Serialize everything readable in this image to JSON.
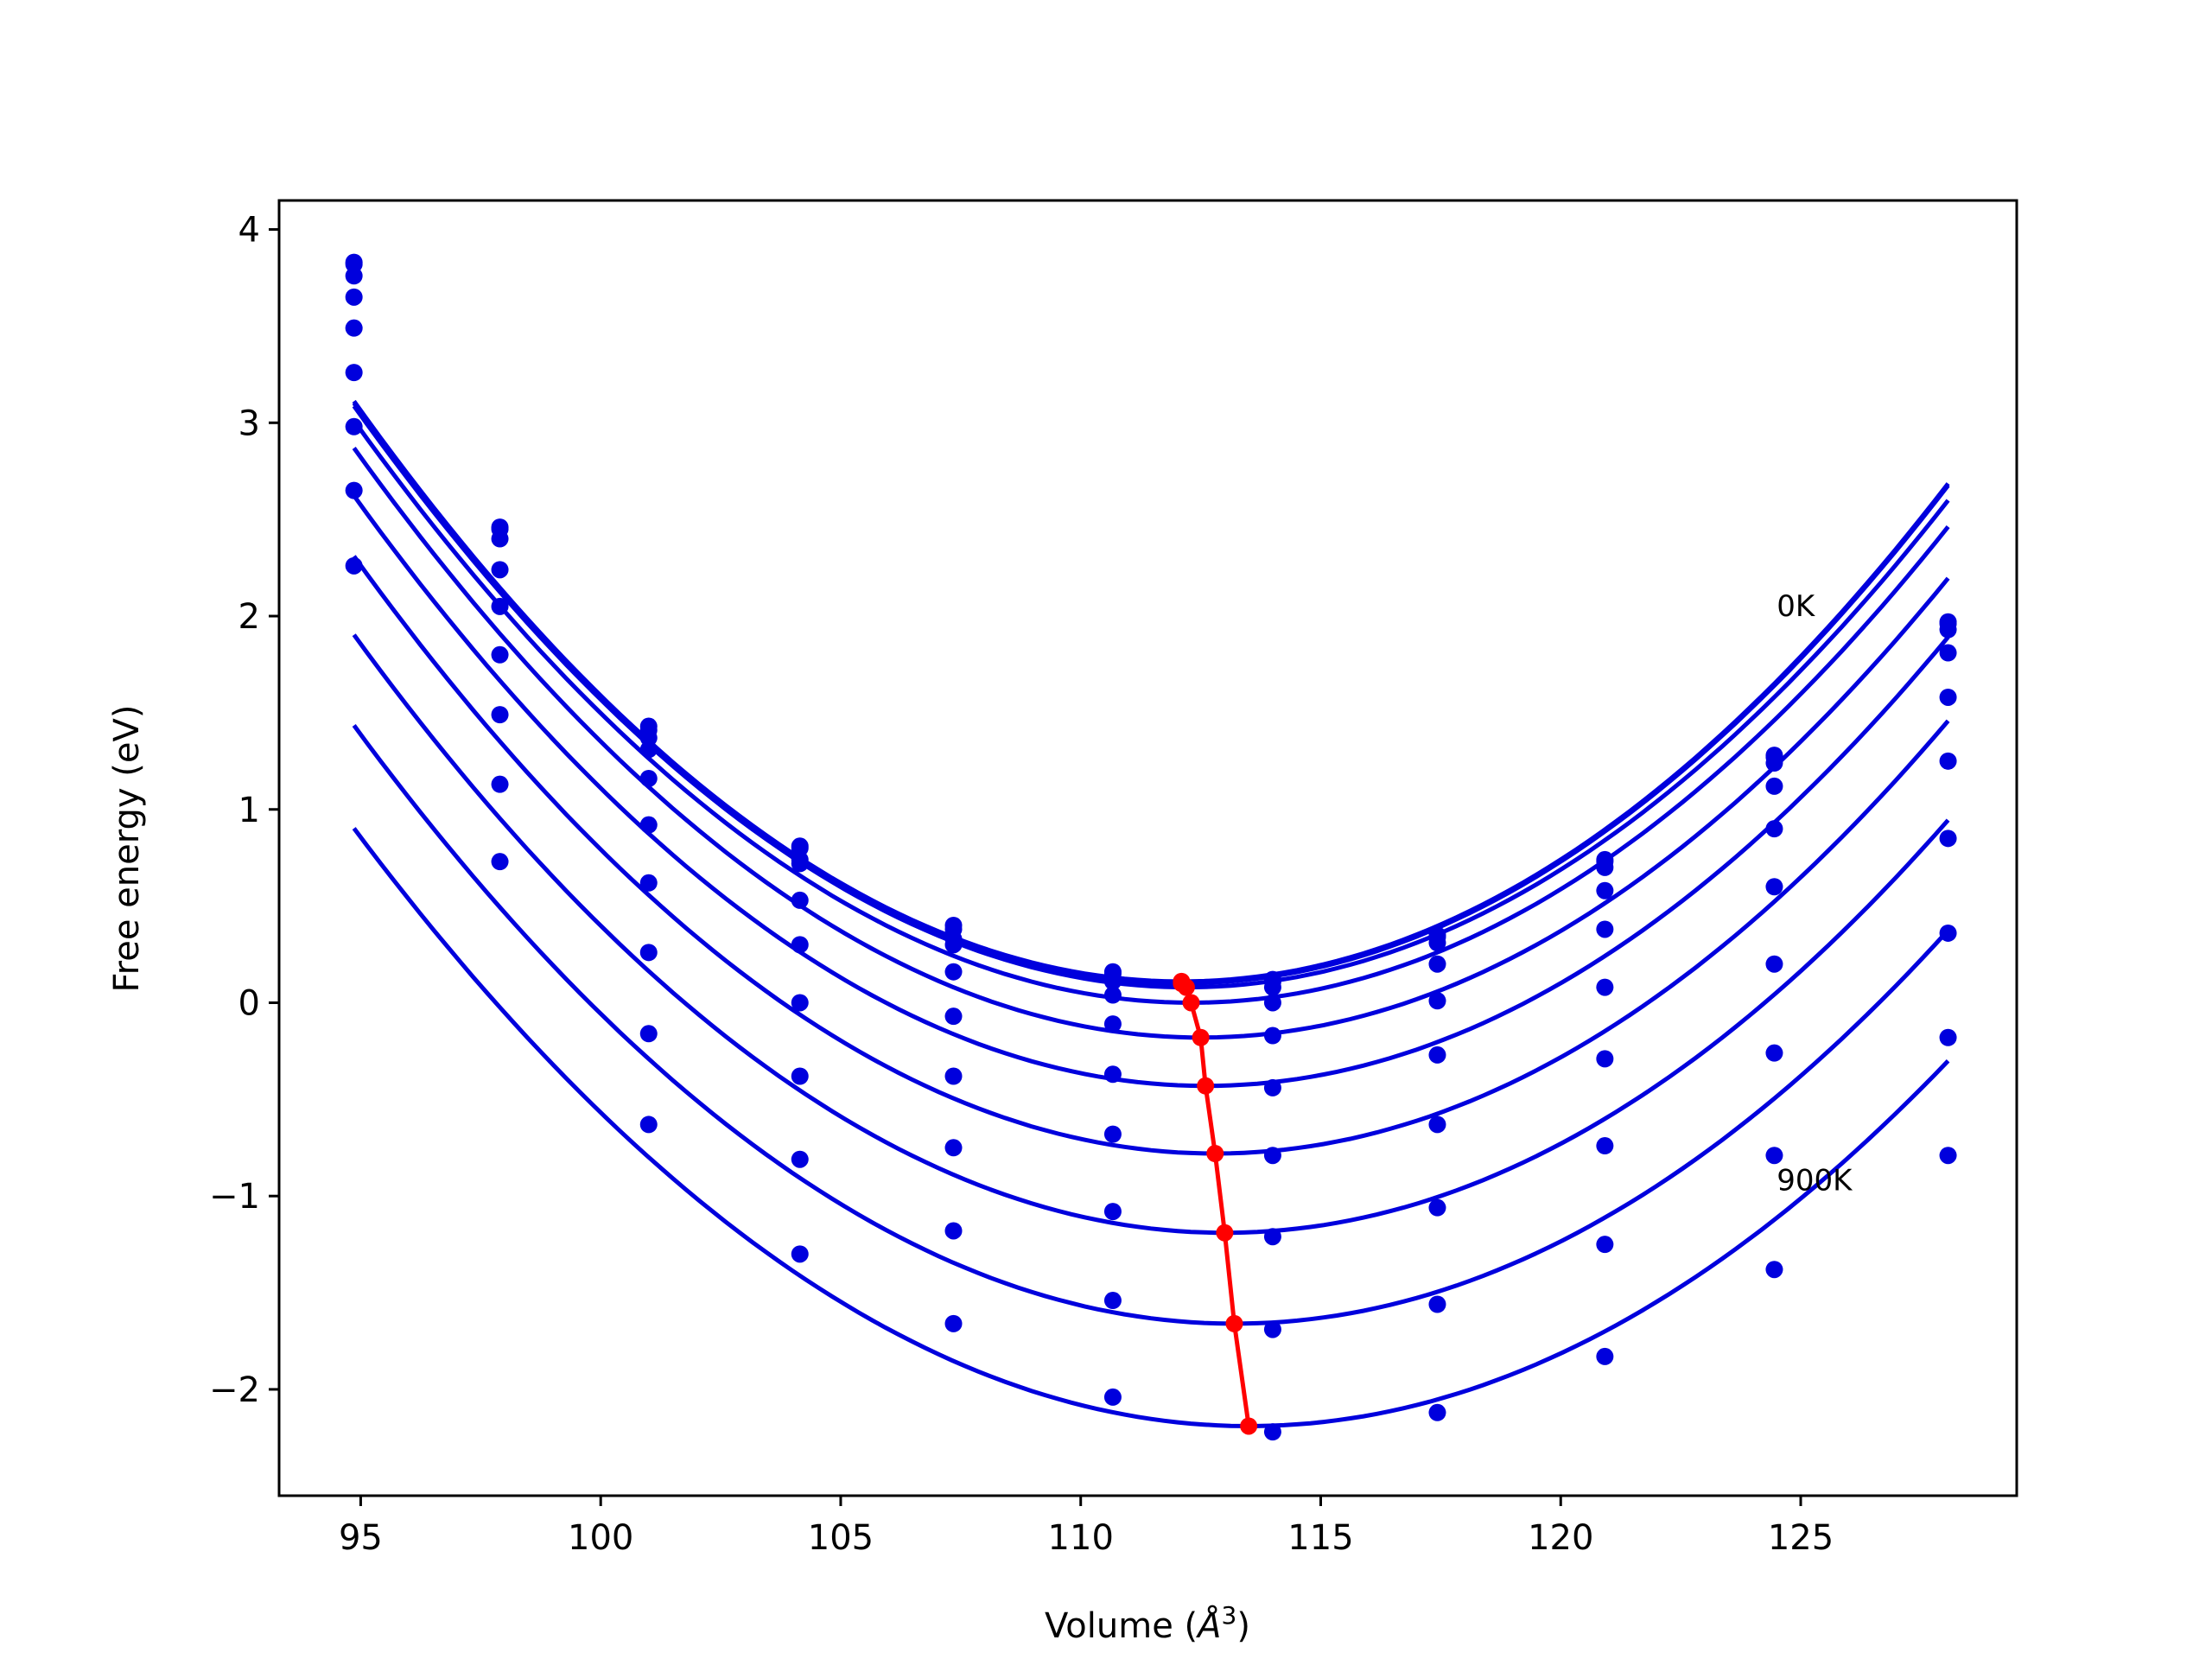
{
  "chart_data": {
    "type": "line",
    "title": "",
    "xlabel": "Volume (",
    "xlabel_symbol": "Å",
    "xlabel_exp": "3",
    "xlabel_close": ")",
    "ylabel": "Free energy (eV)",
    "xlim": [
      93.3,
      129.5
    ],
    "ylim": [
      -2.55,
      4.15
    ],
    "xticks": [
      95,
      100,
      105,
      110,
      115,
      120,
      125
    ],
    "xtick_labels": [
      "95",
      "100",
      "105",
      "110",
      "115",
      "120",
      "125"
    ],
    "yticks": [
      -2,
      -1,
      0,
      1,
      2,
      3,
      4
    ],
    "ytick_labels": [
      "−2",
      "−1",
      "0",
      "1",
      "2",
      "3",
      "4"
    ],
    "grid": false,
    "curve_color": "#0000dd",
    "minima_color": "#ff0000",
    "x": [
      94.86,
      97.9,
      101.0,
      104.15,
      107.35,
      110.67,
      114.0,
      117.43,
      120.92,
      124.45,
      128.07
    ],
    "series": [
      {
        "values": [
          3.83,
          2.46,
          1.43,
          0.81,
          0.4,
          0.16,
          0.12,
          0.35,
          0.74,
          1.28,
          1.97
        ],
        "fit_min": [
          112.1,
          0.11
        ],
        "fit_a": 0.0101
      },
      {
        "values": [
          3.82,
          2.45,
          1.41,
          0.8,
          0.38,
          0.15,
          0.11,
          0.34,
          0.73,
          1.27,
          1.96
        ],
        "fit_min": [
          112.1,
          0.1
        ],
        "fit_a": 0.0101
      },
      {
        "values": [
          3.76,
          2.4,
          1.37,
          0.74,
          0.33,
          0.11,
          0.08,
          0.31,
          0.7,
          1.24,
          1.93
        ],
        "fit_min": [
          112.2,
          0.08
        ],
        "fit_a": 0.01
      },
      {
        "values": [
          3.65,
          2.24,
          1.31,
          0.72,
          0.3,
          0.04,
          0.0,
          0.2,
          0.58,
          1.12,
          1.81
        ],
        "fit_min": [
          112.3,
          0.0
        ],
        "fit_a": 0.0099
      },
      {
        "values": [
          3.49,
          2.05,
          1.16,
          0.53,
          0.16,
          -0.11,
          -0.17,
          0.01,
          0.38,
          0.9,
          1.58
        ],
        "fit_min": [
          112.5,
          -0.18
        ],
        "fit_a": 0.0098
      },
      {
        "values": [
          3.26,
          1.8,
          0.92,
          0.3,
          -0.07,
          -0.37,
          -0.44,
          -0.27,
          0.08,
          0.6,
          1.25
        ],
        "fit_min": [
          112.6,
          -0.43
        ],
        "fit_a": 0.0097
      },
      {
        "values": [
          2.98,
          1.49,
          0.62,
          0.0,
          -0.38,
          -0.68,
          -0.79,
          -0.63,
          -0.29,
          0.2,
          0.85
        ],
        "fit_min": [
          112.8,
          -0.78
        ],
        "fit_a": 0.0096
      },
      {
        "values": [
          2.65,
          1.13,
          0.26,
          -0.38,
          -0.75,
          -1.08,
          -1.21,
          -1.06,
          -0.74,
          -0.26,
          0.36
        ],
        "fit_min": [
          113.0,
          -1.19
        ],
        "fit_a": 0.0094
      },
      {
        "values": [
          2.26,
          0.73,
          -0.16,
          -0.81,
          -1.18,
          -1.54,
          -1.69,
          -1.56,
          -1.25,
          -0.79,
          -0.18
        ],
        "fit_min": [
          113.2,
          -1.66
        ],
        "fit_a": 0.0092
      },
      {
        "values": [
          null,
          null,
          -0.63,
          -1.3,
          -1.66,
          -2.04,
          -2.22,
          -2.12,
          -1.83,
          -1.38,
          -0.79
        ],
        "fit_min": [
          113.5,
          -2.19
        ],
        "fit_a": 0.0089
      }
    ],
    "annotations": [
      {
        "text": "0K",
        "x": 124.5,
        "y": 2.0
      },
      {
        "text": "900K",
        "x": 124.5,
        "y": -0.97
      }
    ]
  }
}
